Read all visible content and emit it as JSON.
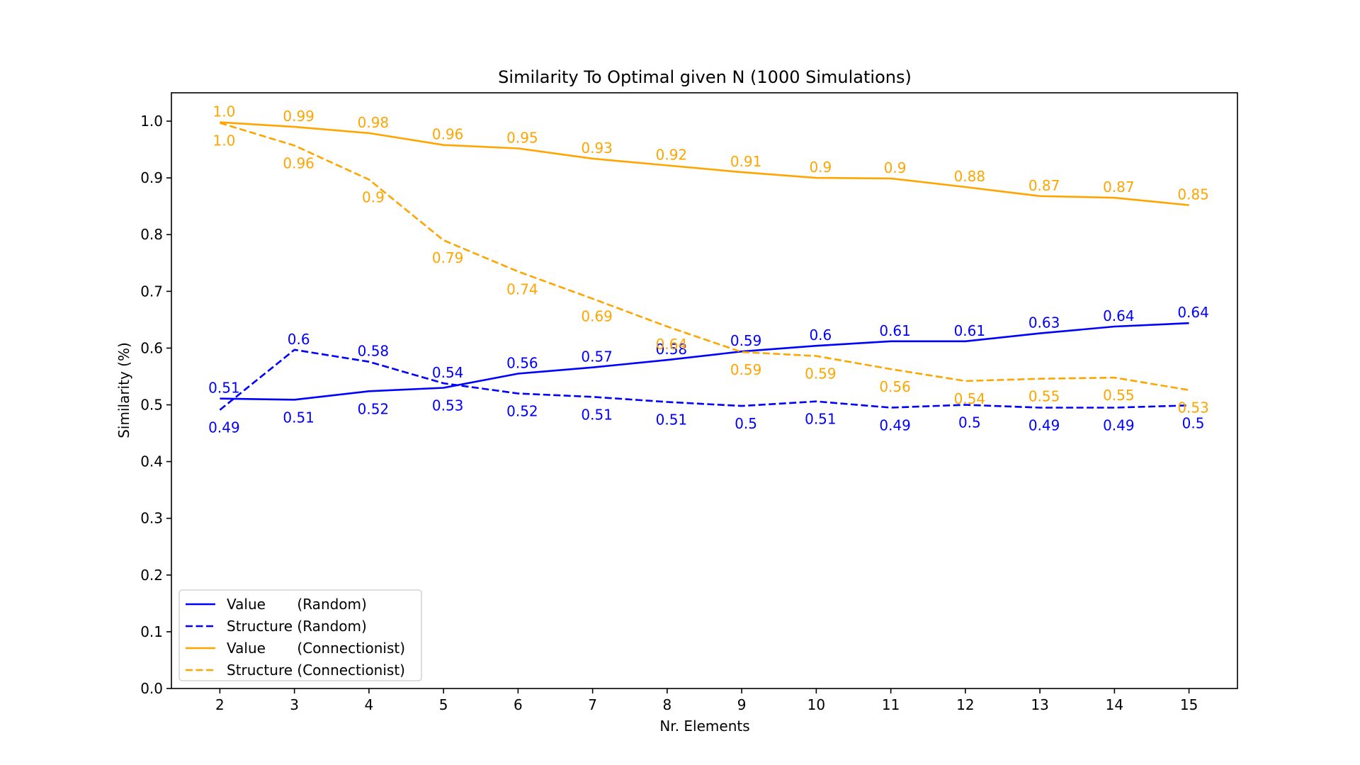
{
  "chart_data": {
    "type": "line",
    "title": "Similarity To Optimal given N (1000 Simulations)",
    "xlabel": "Nr. Elements",
    "ylabel": "Similarity (%)",
    "x": [
      2,
      3,
      4,
      5,
      6,
      7,
      8,
      9,
      10,
      11,
      12,
      13,
      14,
      15
    ],
    "xlim": [
      1.35,
      15.65
    ],
    "ylim": [
      0.0,
      1.05
    ],
    "yticks": [
      0.0,
      0.1,
      0.2,
      0.3,
      0.4,
      0.5,
      0.6,
      0.7,
      0.8,
      0.9,
      1.0
    ],
    "ytick_labels": [
      "0.0",
      "0.1",
      "0.2",
      "0.3",
      "0.4",
      "0.5",
      "0.6",
      "0.7",
      "0.8",
      "0.9",
      "1.0"
    ],
    "xtick_labels": [
      "2",
      "3",
      "4",
      "5",
      "6",
      "7",
      "8",
      "9",
      "10",
      "11",
      "12",
      "13",
      "14",
      "15"
    ],
    "grid": false,
    "legend_position": "bottom-left",
    "series": [
      {
        "name": "Value       (Random)",
        "color": "#0000ff",
        "style": "solid",
        "values": [
          0.511,
          0.509,
          0.524,
          0.53,
          0.555,
          0.566,
          0.579,
          0.594,
          0.604,
          0.612,
          0.612,
          0.626,
          0.638,
          0.644
        ],
        "labels": [
          "0.51",
          "0.51",
          "0.52",
          "0.53",
          "0.56",
          "0.57",
          "0.58",
          "0.59",
          "0.6",
          "0.61",
          "0.61",
          "0.63",
          "0.64",
          "0.64"
        ]
      },
      {
        "name": "Structure (Random)",
        "color": "#0000ff",
        "style": "dashed",
        "values": [
          0.491,
          0.597,
          0.576,
          0.538,
          0.52,
          0.514,
          0.505,
          0.498,
          0.506,
          0.495,
          0.5,
          0.495,
          0.495,
          0.499
        ],
        "labels": [
          "0.49",
          "0.6",
          "0.58",
          "0.54",
          "0.52",
          "0.51",
          "0.51",
          "0.5",
          "0.51",
          "0.49",
          "0.5",
          "0.49",
          "0.49",
          "0.5"
        ]
      },
      {
        "name": "Value       (Connectionist)",
        "color": "#ffa500",
        "style": "solid",
        "values": [
          0.998,
          0.99,
          0.979,
          0.958,
          0.952,
          0.934,
          0.922,
          0.91,
          0.9,
          0.899,
          0.884,
          0.868,
          0.865,
          0.852
        ],
        "labels": [
          "1.0",
          "0.99",
          "0.98",
          "0.96",
          "0.95",
          "0.93",
          "0.92",
          "0.91",
          "0.9",
          "0.9",
          "0.88",
          "0.87",
          "0.87",
          "0.85"
        ]
      },
      {
        "name": "Structure (Connectionist)",
        "color": "#ffa500",
        "style": "dashed",
        "values": [
          0.997,
          0.957,
          0.897,
          0.79,
          0.735,
          0.687,
          0.638,
          0.593,
          0.586,
          0.563,
          0.542,
          0.546,
          0.548,
          0.526
        ],
        "labels": [
          "1.0",
          "0.96",
          "0.9",
          "0.79",
          "0.74",
          "0.69",
          "0.64",
          "0.59",
          "0.59",
          "0.56",
          "0.54",
          "0.55",
          "0.55",
          "0.53"
        ]
      }
    ]
  }
}
